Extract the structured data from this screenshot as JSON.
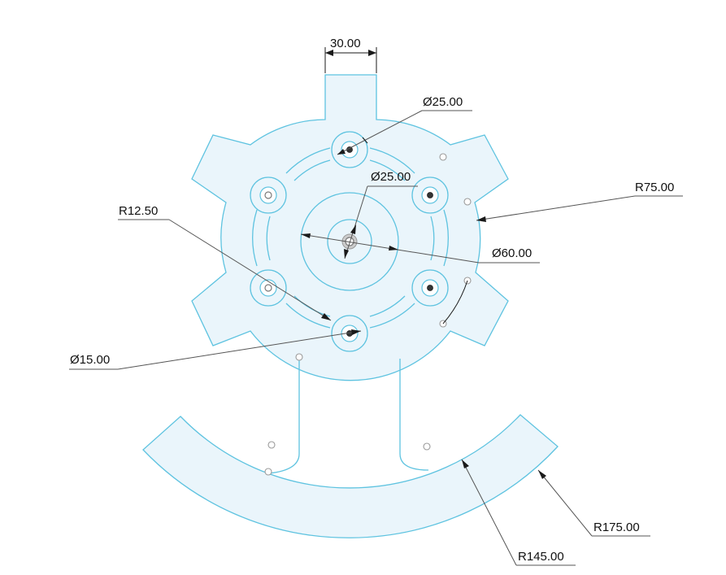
{
  "drawing": {
    "accent_color": "#5ec3e0",
    "fill_color": "#eaf5fb",
    "dimension_color": "#1a1a1a"
  },
  "dimensions": {
    "tab_width": "30.00",
    "hole_diameter_top": "Ø25.00",
    "center_hole_diameter": "Ø25.00",
    "outer_radius": "R75.00",
    "bolt_circle_diameter": "Ø60.00",
    "pocket_radius": "R12.50",
    "small_hole_diameter": "Ø15.00",
    "arc_inner_radius": "R145.00",
    "arc_outer_radius": "R175.00"
  }
}
